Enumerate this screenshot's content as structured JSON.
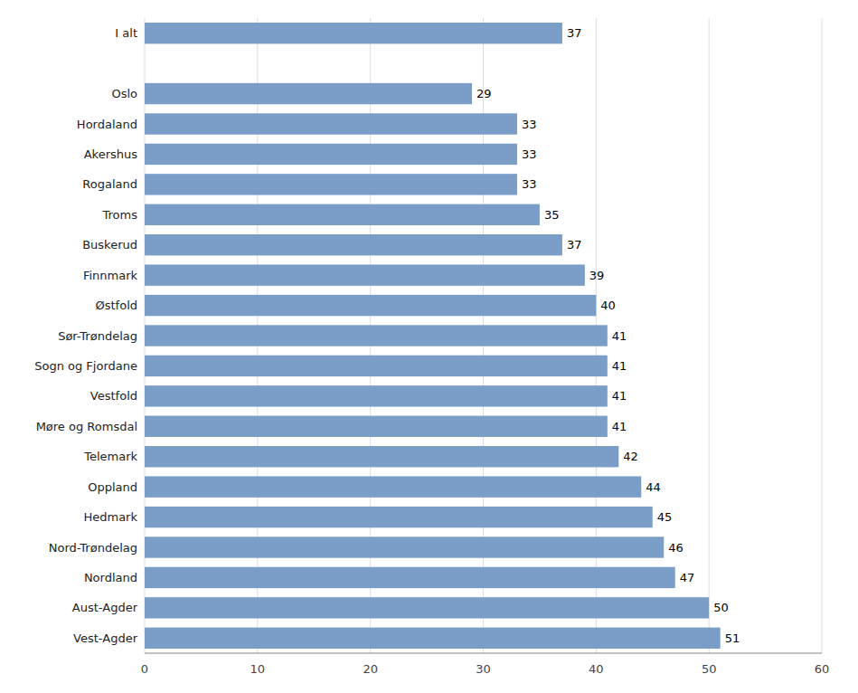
{
  "chart_data": {
    "type": "bar",
    "orientation": "horizontal",
    "categories": [
      "I alt",
      null,
      "Oslo",
      "Hordaland",
      "Akershus",
      "Rogaland",
      "Troms",
      "Buskerud",
      "Finnmark",
      "Østfold",
      "Sør-Trøndelag",
      "Sogn og Fjordane",
      "Vestfold",
      "Møre og Romsdal",
      "Telemark",
      "Oppland",
      "Hedmark",
      "Nord-Trøndelag",
      "Nordland",
      "Aust-Agder",
      "Vest-Agder"
    ],
    "values": [
      37,
      null,
      29,
      33,
      33,
      33,
      35,
      37,
      39,
      40,
      41,
      41,
      41,
      41,
      42,
      44,
      45,
      46,
      47,
      50,
      51
    ],
    "color": "#7B9EC8",
    "xlim": [
      0,
      60
    ],
    "xticks": [
      0,
      10,
      20,
      30,
      40,
      50,
      60
    ],
    "grid": true,
    "data_labels": true
  }
}
